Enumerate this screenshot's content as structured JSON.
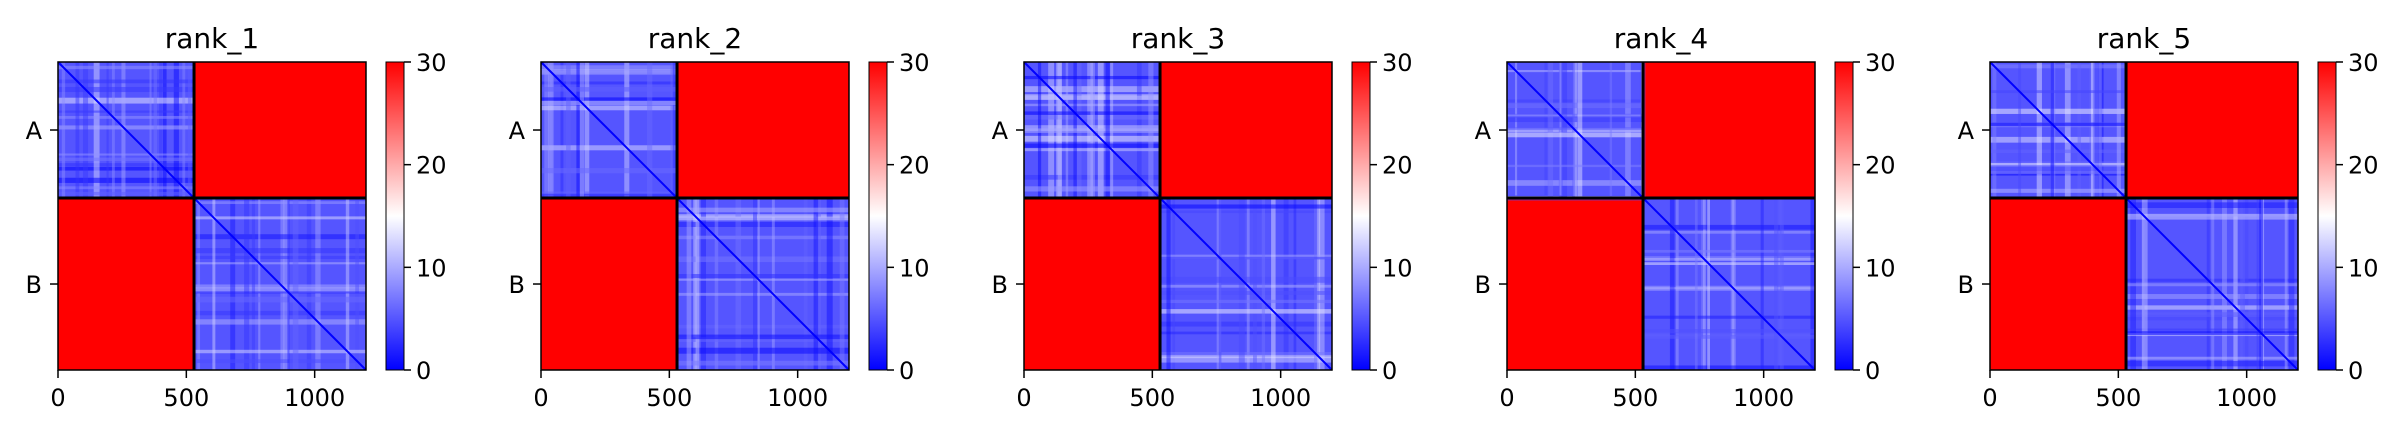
{
  "chart_data": {
    "type": "heatmap",
    "colormap": {
      "name": "bwr",
      "low": "#0000ff",
      "mid": "#ffffff",
      "high": "#ff0000"
    },
    "colorbar": {
      "min": 0,
      "max": 30,
      "ticks": [
        0,
        10,
        20,
        30
      ]
    },
    "x_range": [
      0,
      1200
    ],
    "x_ticks": [
      0,
      500,
      1000
    ],
    "chains": [
      {
        "label": "A",
        "start": 0,
        "end": 530
      },
      {
        "label": "B",
        "start": 530,
        "end": 1200
      }
    ],
    "panels": [
      {
        "title": "rank_1"
      },
      {
        "title": "rank_2"
      },
      {
        "title": "rank_3"
      },
      {
        "title": "rank_4"
      },
      {
        "title": "rank_5"
      }
    ]
  }
}
